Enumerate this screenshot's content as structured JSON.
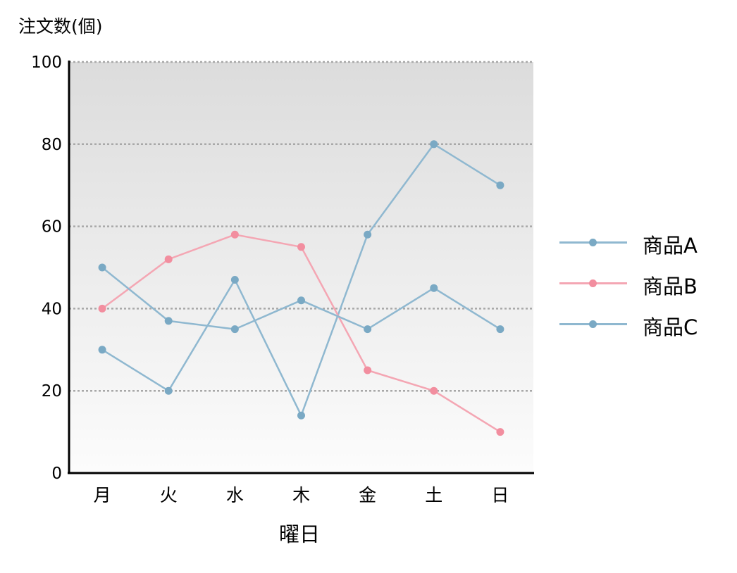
{
  "chart_data": {
    "type": "line",
    "title": "",
    "ylabel": "注文数(個)",
    "xlabel": "曜日",
    "categories": [
      "月",
      "火",
      "水",
      "木",
      "金",
      "土",
      "日"
    ],
    "ylim": [
      0,
      100
    ],
    "yticks": [
      0,
      20,
      40,
      60,
      80,
      100
    ],
    "grid": true,
    "legend_position": "right",
    "series": [
      {
        "name": "商品A",
        "color": "#8fb8d0",
        "point_color": "#7aa9c4",
        "values": [
          30,
          20,
          47,
          14,
          58,
          80,
          70
        ]
      },
      {
        "name": "商品B",
        "color": "#f4a6b3",
        "point_color": "#f28e9f",
        "values": [
          40,
          52,
          58,
          55,
          25,
          20,
          10
        ]
      },
      {
        "name": "商品C",
        "color": "#8fb8d0",
        "point_color": "#7aa9c4",
        "values": [
          50,
          37,
          35,
          42,
          35,
          45,
          35
        ]
      }
    ]
  }
}
